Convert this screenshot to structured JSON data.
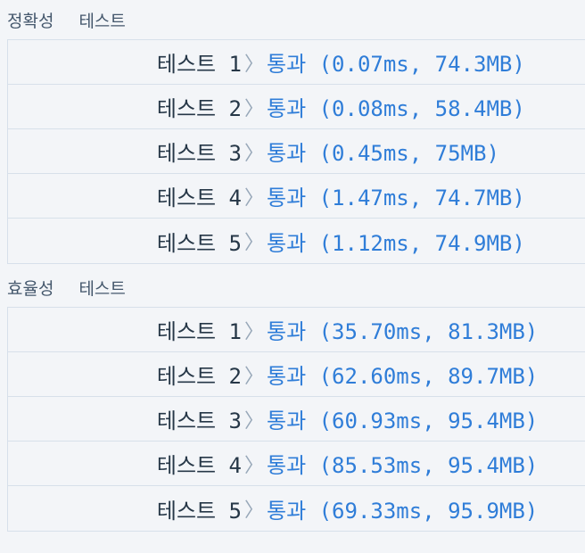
{
  "sections": [
    {
      "title": "정확성",
      "subtitle": "테스트",
      "rows": [
        {
          "label": "테스트 1",
          "result": "통과 (0.07ms, 74.3MB)"
        },
        {
          "label": "테스트 2",
          "result": "통과 (0.08ms, 58.4MB)"
        },
        {
          "label": "테스트 3",
          "result": "통과 (0.45ms, 75MB)"
        },
        {
          "label": "테스트 4",
          "result": "통과 (1.47ms, 74.7MB)"
        },
        {
          "label": "테스트 5",
          "result": "통과 (1.12ms, 74.9MB)"
        }
      ]
    },
    {
      "title": "효율성",
      "subtitle": "테스트",
      "rows": [
        {
          "label": "테스트 1",
          "result": "통과 (35.70ms, 81.3MB)"
        },
        {
          "label": "테스트 2",
          "result": "통과 (62.60ms, 89.7MB)"
        },
        {
          "label": "테스트 3",
          "result": "통과 (60.93ms, 95.4MB)"
        },
        {
          "label": "테스트 4",
          "result": "통과 (85.53ms, 95.4MB)"
        },
        {
          "label": "테스트 5",
          "result": "통과 (69.33ms, 95.9MB)"
        }
      ]
    }
  ],
  "chevron": "〉",
  "colors": {
    "pass": "#2f7dd8",
    "label": "#263747",
    "border": "#d7e0ea",
    "background": "#f3f5f8"
  }
}
